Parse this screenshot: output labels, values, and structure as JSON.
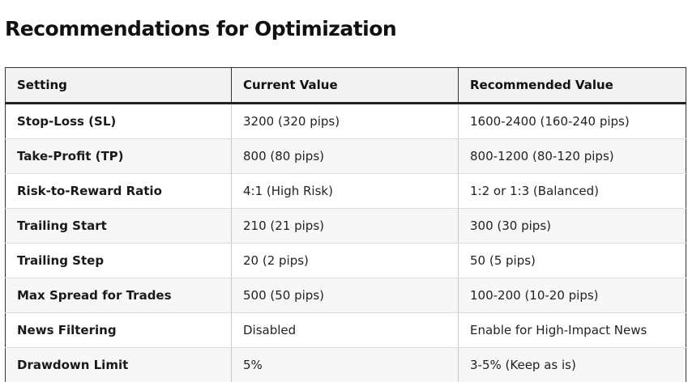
{
  "title": "Recommendations for Optimization",
  "table": {
    "headers": [
      "Setting",
      "Current Value",
      "Recommended Value"
    ],
    "rows": [
      {
        "setting": "Stop-Loss (SL)",
        "current": "3200 (320 pips)",
        "recommended": "1600-2400 (160-240 pips)"
      },
      {
        "setting": "Take-Profit (TP)",
        "current": "800 (80 pips)",
        "recommended": "800-1200 (80-120 pips)"
      },
      {
        "setting": "Risk-to-Reward Ratio",
        "current": "4:1 (High Risk)",
        "recommended": "1:2 or 1:3 (Balanced)"
      },
      {
        "setting": "Trailing Start",
        "current": "210 (21 pips)",
        "recommended": "300 (30 pips)"
      },
      {
        "setting": "Trailing Step",
        "current": "20 (2 pips)",
        "recommended": "50 (5 pips)"
      },
      {
        "setting": "Max Spread for Trades",
        "current": "500 (50 pips)",
        "recommended": "100-200 (10-20 pips)"
      },
      {
        "setting": "News Filtering",
        "current": "Disabled",
        "recommended": "Enable for High-Impact News"
      },
      {
        "setting": "Drawdown Limit",
        "current": "5%",
        "recommended": "3-5% (Keep as is)"
      }
    ]
  }
}
